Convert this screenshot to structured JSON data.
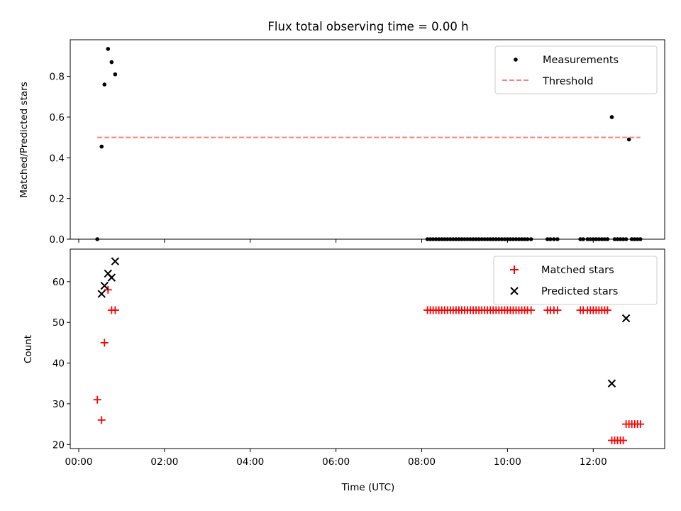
{
  "chart_data": {
    "type": "scatter",
    "title": "Flux total observing time = 0.00 h",
    "xlabel": "Time (UTC)",
    "x_unit": "hours UTC",
    "xlim": [
      "00:00",
      "13:40"
    ],
    "x_tick_labels": [
      "00:00",
      "02:00",
      "04:00",
      "06:00",
      "08:00",
      "10:00",
      "12:00"
    ],
    "panels": [
      {
        "ylabel": "Matched/Predicted stars",
        "ylim": [
          0,
          0.98
        ],
        "y_tick_labels": [
          "0.0",
          "0.2",
          "0.4",
          "0.6",
          "0.8"
        ],
        "legend_position": "top-right",
        "series": [
          {
            "name": "Measurements",
            "marker": "dot",
            "color": "#000000",
            "x": [
              "00:26",
              "00:32",
              "00:36",
              "00:41",
              "00:46",
              "00:51",
              "08:08",
              "08:12",
              "08:16",
              "08:20",
              "08:24",
              "08:28",
              "08:32",
              "08:36",
              "08:40",
              "08:44",
              "08:48",
              "08:52",
              "08:56",
              "09:00",
              "09:04",
              "09:08",
              "09:12",
              "09:16",
              "09:20",
              "09:24",
              "09:28",
              "09:32",
              "09:36",
              "09:40",
              "09:44",
              "09:48",
              "09:52",
              "09:56",
              "10:00",
              "10:04",
              "10:08",
              "10:12",
              "10:16",
              "10:20",
              "10:24",
              "10:28",
              "10:33",
              "10:56",
              "11:00",
              "11:05",
              "11:10",
              "11:42",
              "11:46",
              "11:52",
              "11:56",
              "12:00",
              "12:04",
              "12:08",
              "12:12",
              "12:16",
              "12:20",
              "12:26",
              "12:30",
              "12:34",
              "12:38",
              "12:42",
              "12:46",
              "12:50",
              "12:54",
              "12:58",
              "13:02",
              "13:06"
            ],
            "y": [
              0.0,
              0.455,
              0.76,
              0.935,
              0.87,
              0.81,
              0,
              0,
              0,
              0,
              0,
              0,
              0,
              0,
              0,
              0,
              0,
              0,
              0,
              0,
              0,
              0,
              0,
              0,
              0,
              0,
              0,
              0,
              0,
              0,
              0,
              0,
              0,
              0,
              0,
              0,
              0,
              0,
              0,
              0,
              0,
              0,
              0,
              0,
              0,
              0,
              0,
              0,
              0,
              0,
              0,
              0,
              0,
              0,
              0,
              0,
              0,
              0.6,
              0,
              0,
              0,
              0,
              0,
              0.49,
              0,
              0,
              0,
              0
            ]
          },
          {
            "name": "Threshold",
            "style": "dashed",
            "color": "#ff7f7f",
            "x": [
              "00:26",
              "13:06"
            ],
            "y": [
              0.5,
              0.5
            ]
          }
        ]
      },
      {
        "ylabel": "Count",
        "ylim": [
          19,
          68
        ],
        "y_tick_labels": [
          "20",
          "30",
          "40",
          "50",
          "60"
        ],
        "legend_position": "top-right",
        "series": [
          {
            "name": "Matched stars",
            "marker": "plus",
            "color": "#ff0000",
            "x": [
              "00:26",
              "00:32",
              "00:36",
              "00:41",
              "00:46",
              "00:51",
              "08:08",
              "08:12",
              "08:16",
              "08:20",
              "08:24",
              "08:28",
              "08:32",
              "08:36",
              "08:40",
              "08:44",
              "08:48",
              "08:52",
              "08:56",
              "09:00",
              "09:04",
              "09:08",
              "09:12",
              "09:16",
              "09:20",
              "09:24",
              "09:28",
              "09:32",
              "09:36",
              "09:40",
              "09:44",
              "09:48",
              "09:52",
              "09:56",
              "10:00",
              "10:04",
              "10:08",
              "10:12",
              "10:16",
              "10:20",
              "10:24",
              "10:28",
              "10:33",
              "10:56",
              "11:00",
              "11:05",
              "11:10",
              "11:42",
              "11:46",
              "11:52",
              "11:56",
              "12:00",
              "12:04",
              "12:08",
              "12:12",
              "12:16",
              "12:20",
              "12:26",
              "12:30",
              "12:34",
              "12:38",
              "12:42",
              "12:46",
              "12:50",
              "12:54",
              "12:58",
              "13:02",
              "13:06"
            ],
            "y": [
              31,
              26,
              45,
              58,
              53,
              53,
              53,
              53,
              53,
              53,
              53,
              53,
              53,
              53,
              53,
              53,
              53,
              53,
              53,
              53,
              53,
              53,
              53,
              53,
              53,
              53,
              53,
              53,
              53,
              53,
              53,
              53,
              53,
              53,
              53,
              53,
              53,
              53,
              53,
              53,
              53,
              53,
              53,
              53,
              53,
              53,
              53,
              53,
              53,
              53,
              53,
              53,
              53,
              53,
              53,
              53,
              53,
              21,
              21,
              21,
              21,
              21,
              25,
              25,
              25,
              25,
              25,
              25
            ]
          },
          {
            "name": "Predicted stars",
            "marker": "x",
            "color": "#000000",
            "x": [
              "00:32",
              "00:36",
              "00:41",
              "00:46",
              "00:51",
              "12:26",
              "12:46"
            ],
            "y": [
              57,
              59,
              62,
              61,
              65,
              35,
              51
            ]
          }
        ]
      }
    ]
  }
}
